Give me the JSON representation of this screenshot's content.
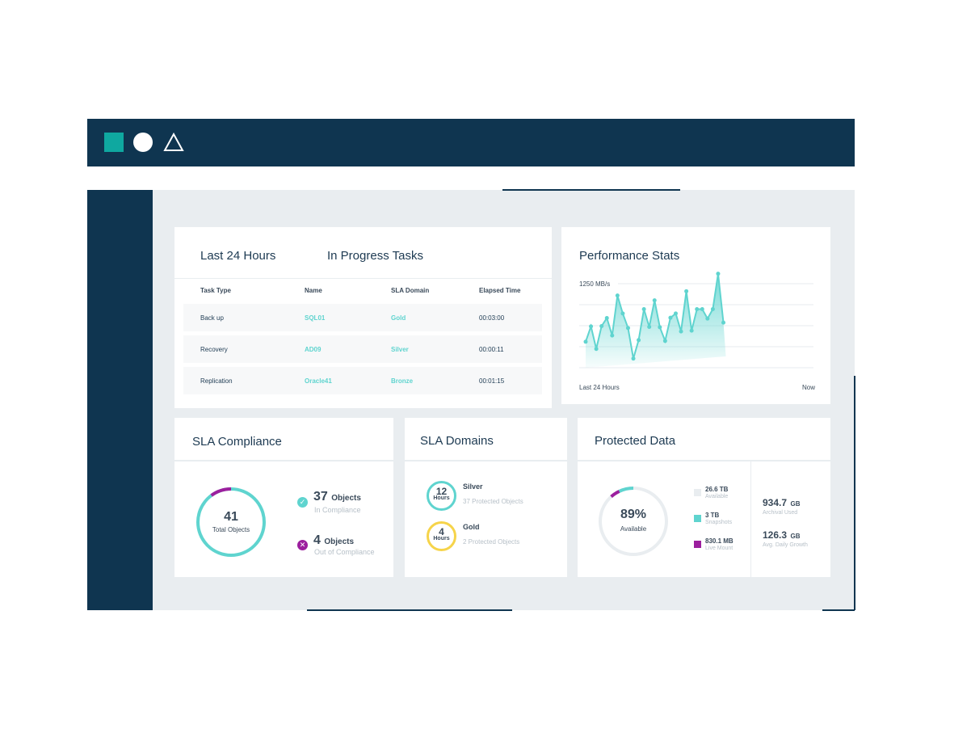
{
  "colors": {
    "navy": "#0f3550",
    "teal": "#5fd4cf",
    "purple": "#9c1f9e",
    "gold": "#f6d44a",
    "bg": "#e9edf0"
  },
  "topbar": {
    "icons": [
      "square-icon",
      "circle-icon",
      "triangle-icon"
    ]
  },
  "tasks": {
    "title_left": "Last 24 Hours",
    "title_right": "In Progress Tasks",
    "columns": [
      "Task Type",
      "Name",
      "SLA Domain",
      "Elapsed Time"
    ],
    "rows": [
      [
        "Back up",
        "SQL01",
        "Gold",
        "00:03:00"
      ],
      [
        "Recovery",
        "AD09",
        "Silver",
        "00:00:11"
      ],
      [
        "Replication",
        "Oracle41",
        "Bronze",
        "00:01:15"
      ]
    ]
  },
  "performance": {
    "title": "Performance Stats"
  },
  "chart_data": {
    "type": "area",
    "title": "Performance Stats",
    "ylabel": "1250 MB/s",
    "xlabel_start": "Last 24 Hours",
    "xlabel_end": "Now",
    "ylim": [
      0,
      1250
    ],
    "xlim": [
      0,
      43
    ],
    "x": [
      0,
      1,
      2,
      3,
      4,
      5,
      6,
      7,
      8,
      9,
      10,
      11,
      12,
      13,
      14,
      15,
      16,
      17,
      18,
      19,
      20,
      21,
      22,
      23,
      24,
      25,
      26
    ],
    "values": [
      387,
      615,
      280,
      619,
      739,
      479,
      1074,
      807,
      591,
      136,
      411,
      871,
      607,
      1002,
      603,
      399,
      743,
      807,
      539,
      1138,
      551,
      871,
      871,
      731,
      871,
      1398,
      671
    ]
  },
  "sla_compliance": {
    "title": "SLA Compliance",
    "total": "41",
    "total_label": "Total Objects",
    "in_value": "37",
    "in_unit": "Objects",
    "in_label": "In Compliance",
    "out_value": "4",
    "out_unit": "Objects",
    "out_label": "Out of Compliance"
  },
  "sla_domains": {
    "title": "SLA Domains",
    "items": [
      {
        "hours": "12",
        "unit": "Hours",
        "name": "Silver",
        "desc": "37 Protected Objects"
      },
      {
        "hours": "4",
        "unit": "Hours",
        "name": "Gold",
        "desc": "2 Protected Objects"
      }
    ]
  },
  "protected": {
    "title": "Protected Data",
    "percent": "89%",
    "percent_label": "Available",
    "legend": [
      {
        "value": "26.6 TB",
        "label": "Available"
      },
      {
        "value": "3 TB",
        "label": "Snapshots"
      },
      {
        "value": "830.1 MB",
        "label": "Live Mount"
      }
    ],
    "archival_value": "934.7",
    "archival_unit": "GB",
    "archival_label": "Archival Used",
    "growth_value": "126.3",
    "growth_unit": "GB",
    "growth_label": "Avg. Daily Growth"
  }
}
